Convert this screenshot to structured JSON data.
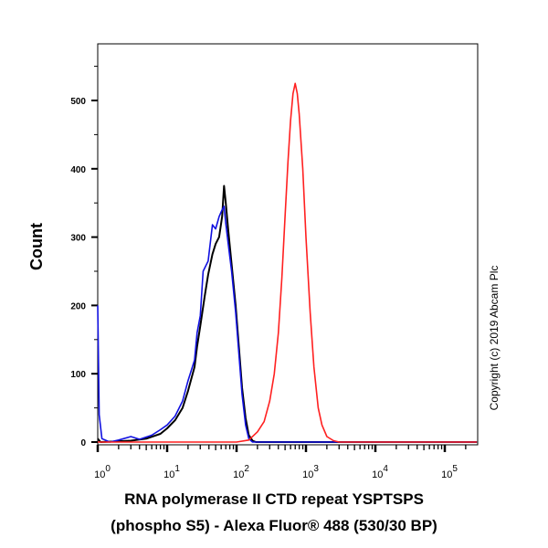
{
  "chart_data": {
    "type": "line",
    "title": "",
    "xlabel_line1": "RNA polymerase II CTD repeat YSPTSPS",
    "xlabel_line2": "(phospho S5) - Alexa Fluor® 488 (530/30 BP)",
    "ylabel": "Count",
    "x_scale": "log",
    "xlim": [
      1,
      290000
    ],
    "ylim": [
      0,
      585
    ],
    "x_ticks": [
      1,
      10,
      100,
      1000,
      10000,
      100000
    ],
    "x_tick_labels": [
      {
        "base": "10",
        "exp": "0"
      },
      {
        "base": "10",
        "exp": "1"
      },
      {
        "base": "10",
        "exp": "2"
      },
      {
        "base": "10",
        "exp": "3"
      },
      {
        "base": "10",
        "exp": "4"
      },
      {
        "base": "10",
        "exp": "5"
      }
    ],
    "y_ticks": [
      0,
      100,
      200,
      300,
      400,
      500
    ],
    "grid": false,
    "annotation": "Copyright (c) 2019 Abcam Plc",
    "series": [
      {
        "color": "#000000",
        "points": [
          [
            1,
            5
          ],
          [
            1.1,
            0
          ],
          [
            3,
            2
          ],
          [
            5,
            5
          ],
          [
            8,
            12
          ],
          [
            10,
            20
          ],
          [
            13,
            32
          ],
          [
            16.7,
            50
          ],
          [
            20,
            75
          ],
          [
            24.8,
            110
          ],
          [
            27,
            140
          ],
          [
            30,
            170
          ],
          [
            35,
            215
          ],
          [
            39,
            245
          ],
          [
            45,
            275
          ],
          [
            50,
            290
          ],
          [
            56,
            300
          ],
          [
            62,
            330
          ],
          [
            66,
            375
          ],
          [
            70,
            350
          ],
          [
            76,
            310
          ],
          [
            85,
            260
          ],
          [
            97,
            200
          ],
          [
            110,
            130
          ],
          [
            120,
            80
          ],
          [
            135,
            35
          ],
          [
            150,
            10
          ],
          [
            170,
            2
          ],
          [
            190,
            0
          ],
          [
            290000,
            0
          ]
        ]
      },
      {
        "color": "#1010e0",
        "points": [
          [
            1,
            200
          ],
          [
            1.05,
            40
          ],
          [
            1.15,
            5
          ],
          [
            1.5,
            0
          ],
          [
            2,
            3
          ],
          [
            3,
            8
          ],
          [
            4,
            4
          ],
          [
            6,
            10
          ],
          [
            8,
            18
          ],
          [
            10,
            25
          ],
          [
            13,
            38
          ],
          [
            16.7,
            60
          ],
          [
            20,
            90
          ],
          [
            24.8,
            120
          ],
          [
            27,
            160
          ],
          [
            30,
            185
          ],
          [
            33,
            250
          ],
          [
            39,
            265
          ],
          [
            45,
            318
          ],
          [
            50,
            312
          ],
          [
            56,
            330
          ],
          [
            62,
            340
          ],
          [
            66,
            345
          ],
          [
            70,
            320
          ],
          [
            76,
            290
          ],
          [
            85,
            250
          ],
          [
            97,
            190
          ],
          [
            110,
            120
          ],
          [
            120,
            70
          ],
          [
            135,
            25
          ],
          [
            150,
            5
          ],
          [
            170,
            0
          ],
          [
            290000,
            0
          ]
        ]
      },
      {
        "color": "#ff2020",
        "points": [
          [
            1,
            0
          ],
          [
            100,
            0
          ],
          [
            150,
            3
          ],
          [
            200,
            15
          ],
          [
            250,
            30
          ],
          [
            300,
            60
          ],
          [
            350,
            100
          ],
          [
            400,
            160
          ],
          [
            450,
            240
          ],
          [
            500,
            330
          ],
          [
            550,
            410
          ],
          [
            600,
            470
          ],
          [
            650,
            510
          ],
          [
            700,
            525
          ],
          [
            750,
            510
          ],
          [
            800,
            480
          ],
          [
            900,
            400
          ],
          [
            1000,
            300
          ],
          [
            1150,
            190
          ],
          [
            1300,
            110
          ],
          [
            1500,
            50
          ],
          [
            1700,
            25
          ],
          [
            2000,
            8
          ],
          [
            2500,
            2
          ],
          [
            3000,
            0
          ],
          [
            290000,
            0
          ]
        ]
      }
    ]
  }
}
